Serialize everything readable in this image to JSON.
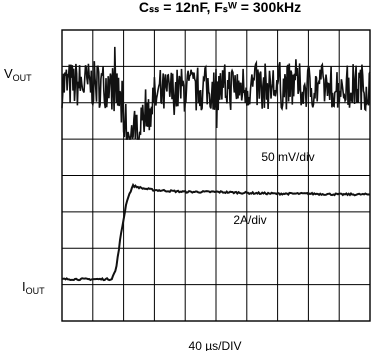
{
  "title": "Cₛₛ = 12nF, Fₛᵂ = 300kHz",
  "footer": "40 µs/DIV",
  "chart_data": {
    "type": "line",
    "title": "Cₛₛ = 12nF, Fₛᵂ = 300kHz",
    "xlabel": "40 µs/DIV",
    "x_divisions": 10,
    "y_divisions": 8,
    "grid": true,
    "series": [
      {
        "name": "VOUT",
        "scale_label": "50 mV/div",
        "trace_label": "VOUT",
        "x": [
          0,
          0.5,
          1,
          1.5,
          1.8,
          2,
          2.2,
          2.4,
          2.6,
          3,
          3.5,
          4,
          5,
          6,
          7,
          8,
          9,
          10
        ],
        "y": [
          6.5,
          6.5,
          6.5,
          6.5,
          6.3,
          5.6,
          5.0,
          5.3,
          5.7,
          6.1,
          6.3,
          6.35,
          6.4,
          6.45,
          6.45,
          6.45,
          6.45,
          6.45
        ],
        "ripple_pp_div": 1.3
      },
      {
        "name": "IOUT",
        "scale_label": "2A/div",
        "trace_label": "IOUT",
        "x": [
          0,
          1.0,
          1.6,
          1.75,
          1.9,
          2.1,
          2.3,
          2.6,
          3,
          4,
          5,
          6,
          7,
          8,
          9,
          10
        ],
        "y": [
          1.15,
          1.15,
          1.15,
          1.4,
          2.3,
          3.3,
          3.72,
          3.65,
          3.6,
          3.55,
          3.55,
          3.52,
          3.5,
          3.5,
          3.48,
          3.48
        ]
      }
    ]
  }
}
